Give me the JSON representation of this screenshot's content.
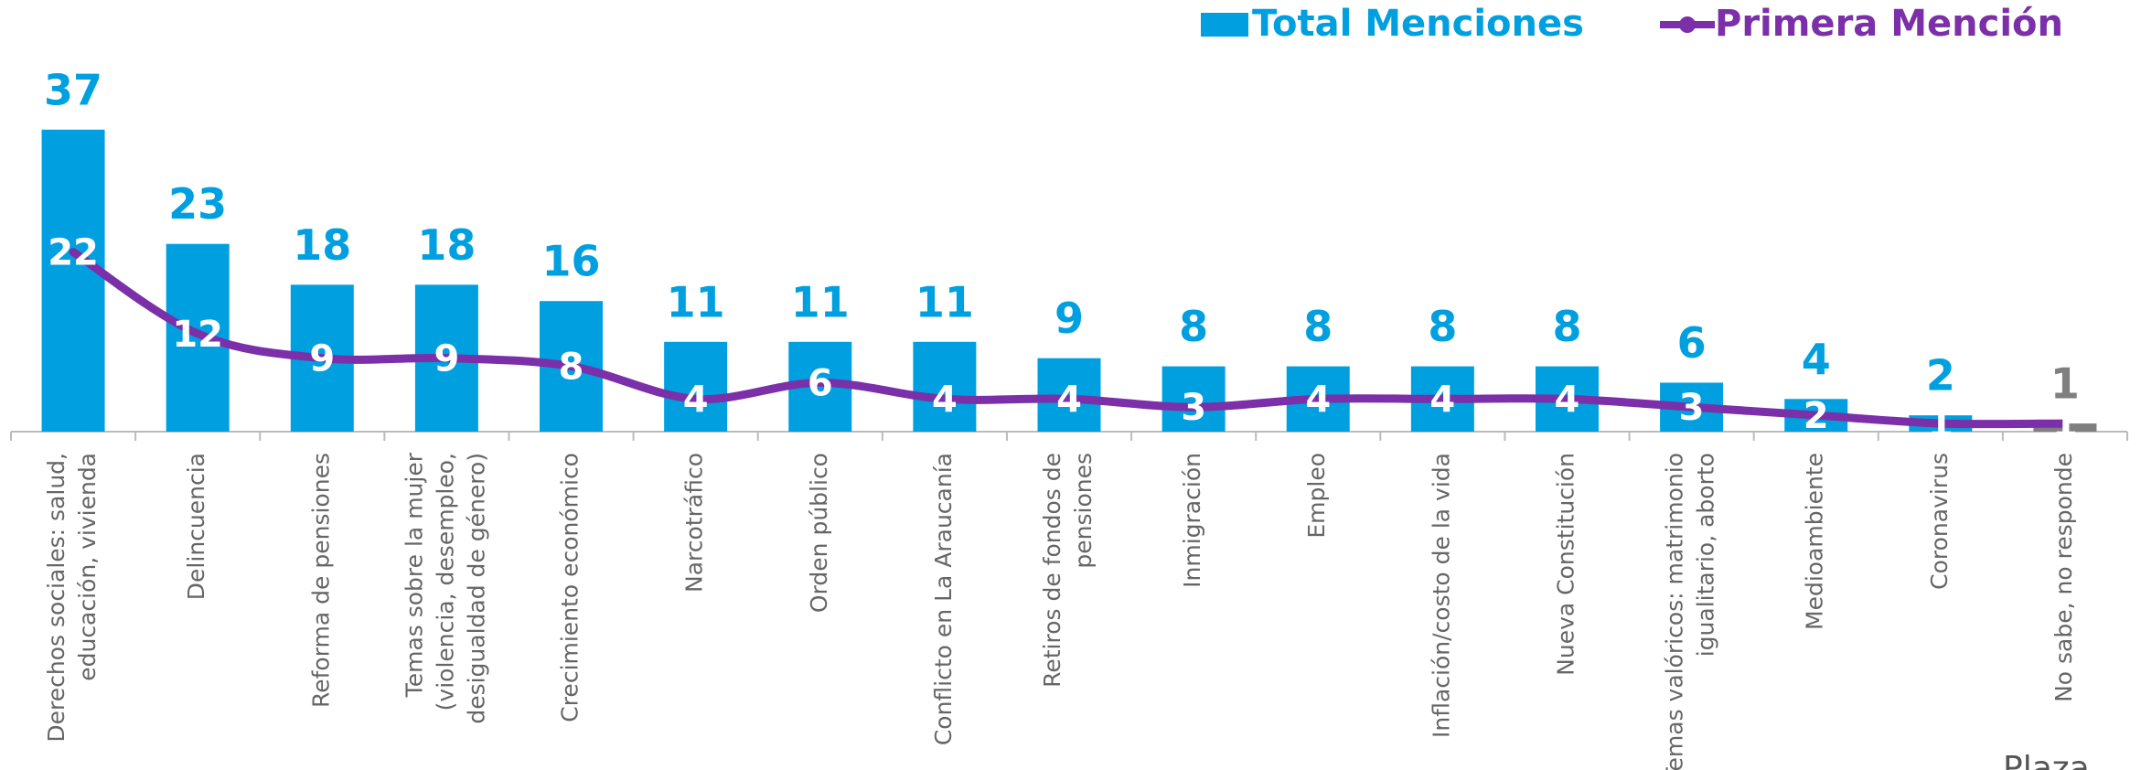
{
  "chart_data": {
    "type": "bar",
    "categories": [
      [
        "Derechos sociales: salud,",
        "educación, vivienda"
      ],
      [
        "Delincuencia"
      ],
      [
        "Reforma de pensiones"
      ],
      [
        "Temas sobre la mujer",
        "(violencia, desempleo,",
        "desigualdad de género)"
      ],
      [
        "Crecimiento económico"
      ],
      [
        "Narcotráfico"
      ],
      [
        "Orden público"
      ],
      [
        "Conflicto en La Araucanía"
      ],
      [
        "Retiros de fondos de",
        "pensiones"
      ],
      [
        "Inmigración"
      ],
      [
        "Empleo"
      ],
      [
        "Inflación/costo de la vida"
      ],
      [
        "Nueva Constitución"
      ],
      [
        "Temas valóricos: matrimonio",
        "igualitario, aborto"
      ],
      [
        "Medioambiente"
      ],
      [
        "Coronavirus"
      ],
      [
        "No sabe, no responde"
      ]
    ],
    "series": [
      {
        "name": "Total Menciones",
        "type": "bar",
        "color": "#00a0e0",
        "colors": [
          "#00a0e0",
          "#00a0e0",
          "#00a0e0",
          "#00a0e0",
          "#00a0e0",
          "#00a0e0",
          "#00a0e0",
          "#00a0e0",
          "#00a0e0",
          "#00a0e0",
          "#00a0e0",
          "#00a0e0",
          "#00a0e0",
          "#00a0e0",
          "#00a0e0",
          "#00a0e0",
          "#7f7f7f"
        ],
        "values": [
          37,
          23,
          18,
          18,
          16,
          11,
          11,
          11,
          9,
          8,
          8,
          8,
          8,
          6,
          4,
          2,
          1
        ]
      },
      {
        "name": "Primera Mención",
        "type": "line",
        "color": "#7b2fa8",
        "values": [
          22,
          12,
          9,
          9,
          8,
          4,
          6,
          4,
          4,
          3,
          4,
          4,
          4,
          3,
          2,
          1,
          1
        ]
      }
    ],
    "ylim": [
      0,
      40
    ],
    "logo": "Plaza"
  }
}
